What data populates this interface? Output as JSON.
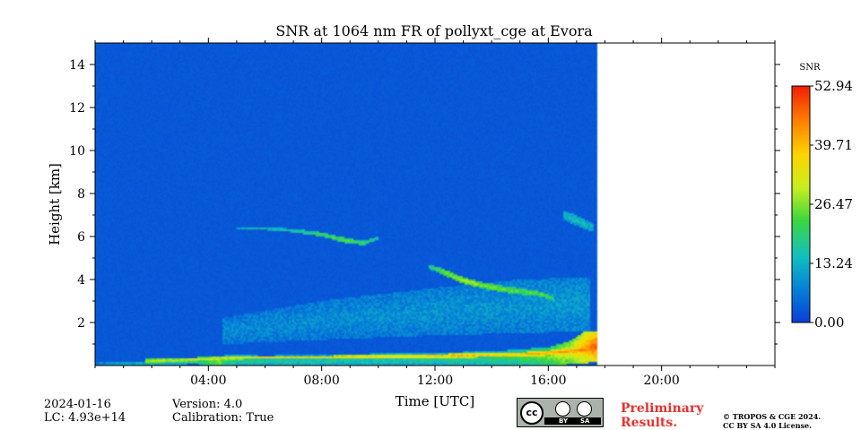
{
  "chart_data": {
    "type": "heatmap",
    "title": "SNR at 1064 nm FR of pollyxt_cge at Evora",
    "xlabel": "Time [UTC]",
    "ylabel": "Height [km]",
    "x_range_hours": [
      0,
      24
    ],
    "x_tick_labels": [
      "04:00",
      "08:00",
      "12:00",
      "16:00",
      "20:00"
    ],
    "x_tick_hours": [
      4,
      8,
      12,
      16,
      20
    ],
    "y_range_km": [
      0,
      15
    ],
    "y_ticks": [
      2,
      4,
      6,
      8,
      10,
      12,
      14
    ],
    "data_end_hour": 17.75,
    "colorbar": {
      "label": "SNR",
      "min": 0.0,
      "max": 52.94,
      "tick_labels": [
        "52.94",
        "39.71",
        "26.47",
        "13.24",
        "0.00"
      ],
      "tick_values": [
        52.94,
        39.71,
        26.47,
        13.24,
        0.0
      ],
      "colormap": [
        "#0a3ed6",
        "#0580d8",
        "#12c0c0",
        "#3ad640",
        "#c8ee1e",
        "#ffd400",
        "#ff7a00",
        "#f01e00"
      ]
    },
    "background_value": 3,
    "features": [
      {
        "name": "boundary-layer-aerosol",
        "points": [
          [
            0.0,
            0.0,
            0.15,
            8
          ],
          [
            0.5,
            0.0,
            0.2,
            12
          ],
          [
            1.7,
            0.0,
            0.2,
            14
          ],
          [
            3.5,
            0.05,
            0.25,
            18
          ],
          [
            4.4,
            0.0,
            0.35,
            28
          ],
          [
            4.6,
            0.0,
            0.5,
            20
          ],
          [
            6.0,
            0.0,
            0.45,
            18
          ],
          [
            8.0,
            0.0,
            0.5,
            17
          ],
          [
            10.0,
            0.0,
            0.55,
            17
          ],
          [
            12.0,
            0.0,
            0.6,
            18
          ],
          [
            14.0,
            0.0,
            0.65,
            19
          ],
          [
            15.0,
            0.0,
            0.75,
            22
          ],
          [
            16.0,
            0.0,
            0.85,
            26
          ],
          [
            16.8,
            0.05,
            1.1,
            34
          ],
          [
            17.3,
            0.1,
            1.5,
            42
          ],
          [
            17.75,
            0.2,
            1.4,
            50
          ]
        ]
      },
      {
        "name": "low-level-layer",
        "points": [
          [
            1.8,
            0.1,
            0.2,
            30
          ],
          [
            3.0,
            0.15,
            0.2,
            32
          ],
          [
            4.2,
            0.25,
            0.15,
            34
          ],
          [
            5.5,
            0.3,
            0.15,
            36
          ],
          [
            8.0,
            0.3,
            0.15,
            38
          ],
          [
            12.0,
            0.35,
            0.18,
            40
          ],
          [
            15.0,
            0.4,
            0.2,
            42
          ],
          [
            16.5,
            0.5,
            0.25,
            44
          ],
          [
            17.5,
            0.6,
            0.3,
            47
          ]
        ]
      },
      {
        "name": "mid-level-aerosol",
        "points": [
          [
            4.5,
            1.0,
            1.2,
            9
          ],
          [
            8.0,
            1.2,
            1.8,
            9
          ],
          [
            12.0,
            1.4,
            2.2,
            10
          ],
          [
            15.0,
            1.5,
            2.5,
            10
          ],
          [
            17.5,
            1.6,
            2.5,
            11
          ]
        ]
      },
      {
        "name": "cloud-streak-6km",
        "points": [
          [
            5.0,
            6.3,
            0.15,
            14
          ],
          [
            6.0,
            6.3,
            0.15,
            15
          ],
          [
            7.0,
            6.2,
            0.15,
            18
          ],
          [
            8.0,
            6.0,
            0.2,
            22
          ],
          [
            8.8,
            5.7,
            0.25,
            24
          ],
          [
            9.5,
            5.6,
            0.2,
            22
          ],
          [
            10.0,
            5.85,
            0.15,
            18
          ]
        ]
      },
      {
        "name": "cirrus-4km",
        "points": [
          [
            11.8,
            4.5,
            0.2,
            18
          ],
          [
            12.3,
            4.2,
            0.3,
            26
          ],
          [
            13.0,
            3.8,
            0.3,
            30
          ],
          [
            13.6,
            3.6,
            0.3,
            28
          ],
          [
            14.4,
            3.4,
            0.3,
            26
          ],
          [
            15.0,
            3.3,
            0.3,
            24
          ],
          [
            15.7,
            3.2,
            0.25,
            26
          ],
          [
            16.2,
            3.0,
            0.2,
            22
          ]
        ]
      },
      {
        "name": "upper-layer-7km",
        "points": [
          [
            16.5,
            6.8,
            0.4,
            14
          ],
          [
            17.0,
            6.5,
            0.5,
            16
          ],
          [
            17.6,
            6.2,
            0.4,
            14
          ]
        ]
      }
    ]
  },
  "footer": {
    "date": "2024-01-16",
    "lc": "LC: 4.93e+14",
    "version": "Version: 4.0",
    "calibration": "Calibration: True",
    "preliminary_line1": "Preliminary",
    "preliminary_line2": "Results.",
    "copyright_line1": "© TROPOS & CGE 2024.",
    "copyright_line2": "CC BY SA 4.0 License.",
    "license_logo": {
      "cc": "cc",
      "by": "BY",
      "sa": "SA"
    }
  }
}
